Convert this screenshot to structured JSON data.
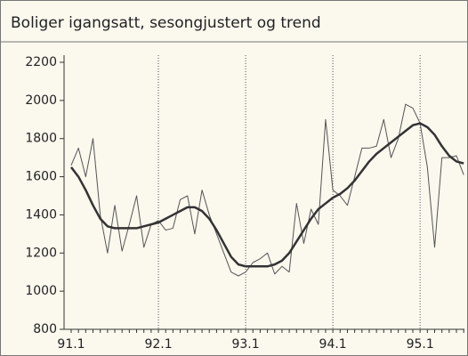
{
  "chart_data": {
    "type": "line",
    "title": "Boliger igangsatt, sesongjustert og trend",
    "categories": [
      "91.1",
      null,
      null,
      null,
      null,
      null,
      null,
      null,
      null,
      null,
      null,
      null,
      "92.1",
      null,
      null,
      null,
      null,
      null,
      null,
      null,
      null,
      null,
      null,
      null,
      "93.1",
      null,
      null,
      null,
      null,
      null,
      null,
      null,
      null,
      null,
      null,
      null,
      "94.1",
      null,
      null,
      null,
      null,
      null,
      null,
      null,
      null,
      null,
      null,
      null,
      "95.1",
      null,
      null,
      null,
      null,
      null,
      null
    ],
    "series": [
      {
        "color": "#555555",
        "line_width": 1,
        "values": [
          1660,
          1750,
          1600,
          1800,
          1400,
          1200,
          1450,
          1210,
          1350,
          1500,
          1230,
          1350,
          1370,
          1320,
          1330,
          1480,
          1500,
          1300,
          1530,
          1400,
          1300,
          1200,
          1100,
          1080,
          1100,
          1150,
          1170,
          1200,
          1090,
          1130,
          1100,
          1460,
          1250,
          1430,
          1350,
          1900,
          1530,
          1500,
          1450,
          1600,
          1750,
          1750,
          1760,
          1900,
          1700,
          1800,
          1980,
          1960,
          1880,
          1650,
          1230,
          1700,
          1700,
          1710,
          1610
        ]
      },
      {
        "color": "#333333",
        "line_width": 2.5,
        "values": [
          1650,
          1600,
          1530,
          1450,
          1380,
          1340,
          1330,
          1330,
          1330,
          1330,
          1340,
          1350,
          1360,
          1380,
          1400,
          1420,
          1440,
          1440,
          1420,
          1380,
          1320,
          1250,
          1180,
          1140,
          1130,
          1130,
          1130,
          1130,
          1140,
          1160,
          1200,
          1260,
          1320,
          1380,
          1430,
          1460,
          1490,
          1510,
          1540,
          1580,
          1630,
          1680,
          1720,
          1750,
          1780,
          1810,
          1840,
          1870,
          1880,
          1860,
          1820,
          1760,
          1710,
          1680,
          1670
        ]
      }
    ],
    "ylim": [
      800,
      2200
    ],
    "yticks": [
      800,
      1000,
      1200,
      1400,
      1600,
      1800,
      2000,
      2200
    ],
    "grid": true
  }
}
